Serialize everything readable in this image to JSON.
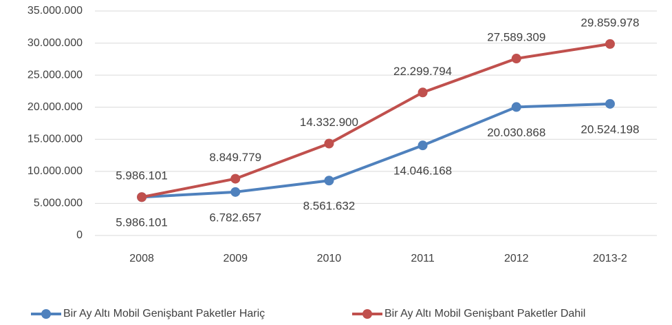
{
  "chart_data": {
    "type": "line",
    "categories": [
      "2008",
      "2009",
      "2010",
      "2011",
      "2012",
      "2013-2"
    ],
    "series": [
      {
        "name": "Bir Ay Altı Mobil Genişbant Paketler Hariç",
        "color": "#4f81bd",
        "values": [
          5986101,
          6782657,
          8561632,
          14046168,
          20030868,
          20524198
        ],
        "value_labels": [
          "5.986.101",
          "6.782.657",
          "8.561.632",
          "14.046.168",
          "20.030.868",
          "20.524.198"
        ]
      },
      {
        "name": "Bir Ay Altı Mobil Genişbant Paketler Dahil",
        "color": "#c0504d",
        "values": [
          5986101,
          8849779,
          14332900,
          22299794,
          27589309,
          29859978
        ],
        "value_labels": [
          "5.986.101",
          "8.849.779",
          "14.332.900",
          "22.299.794",
          "27.589.309",
          "29.859.978"
        ]
      }
    ],
    "ylim": [
      0,
      35000000
    ],
    "yticks": [
      0,
      {
        "value": 5000000,
        "label": "5.000.000"
      },
      {
        "value": 10000000,
        "label": "10.000.000"
      },
      {
        "value": 15000000,
        "label": "15.000.000"
      },
      {
        "value": 20000000,
        "label": "20.000.000"
      },
      {
        "value": 25000000,
        "label": "25.000.000"
      },
      {
        "value": 30000000,
        "label": "30.000.000"
      },
      {
        "value": 35000000,
        "label": "35.000.000"
      }
    ],
    "grid": true,
    "legend": "bottom"
  }
}
